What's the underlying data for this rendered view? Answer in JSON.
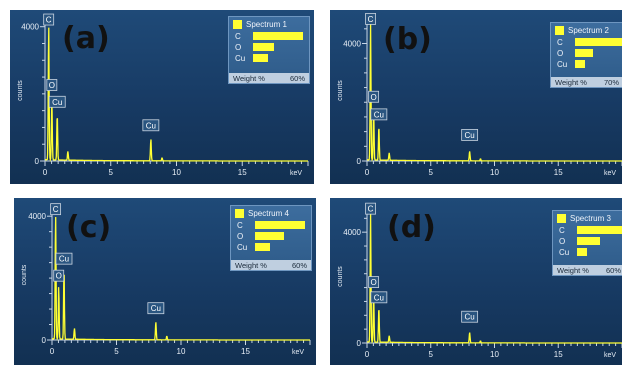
{
  "panels": [
    {
      "panel_label": "(a)",
      "spectrum": "Spectrum 1",
      "weight_label": "Weight %",
      "weight_value": "60%",
      "legend_bars": [
        {
          "element": "C",
          "fraction": 1.0
        },
        {
          "element": "O",
          "fraction": 0.42
        },
        {
          "element": "Cu",
          "fraction": 0.3
        }
      ]
    },
    {
      "panel_label": "(b)",
      "spectrum": "Spectrum 2",
      "weight_label": "Weight %",
      "weight_value": "70%",
      "legend_bars": [
        {
          "element": "C",
          "fraction": 1.0
        },
        {
          "element": "O",
          "fraction": 0.36
        },
        {
          "element": "Cu",
          "fraction": 0.2
        }
      ]
    },
    {
      "panel_label": "(c)",
      "spectrum": "Spectrum 4",
      "weight_label": "Weight %",
      "weight_value": "60%",
      "legend_bars": [
        {
          "element": "C",
          "fraction": 1.0
        },
        {
          "element": "O",
          "fraction": 0.58
        },
        {
          "element": "Cu",
          "fraction": 0.3
        }
      ]
    },
    {
      "panel_label": "(d)",
      "spectrum": "Spectrum 3",
      "weight_label": "Weight %",
      "weight_value": "60%",
      "legend_bars": [
        {
          "element": "C",
          "fraction": 1.0
        },
        {
          "element": "O",
          "fraction": 0.45
        },
        {
          "element": "Cu",
          "fraction": 0.2
        }
      ]
    }
  ],
  "chart_data": [
    {
      "type": "line",
      "xlabel": "keV",
      "ylabel": "counts",
      "xlim": [
        0,
        20
      ],
      "ylim": [
        0,
        4200
      ],
      "xticks": [
        0,
        5,
        10,
        15
      ],
      "yticks": [
        0,
        4000
      ],
      "line_color": "#ffff33",
      "peak_labels": [
        {
          "label": "C",
          "x": 0.28,
          "y": 4050
        },
        {
          "label": "O",
          "x": 0.52,
          "y": 2100
        },
        {
          "label": "Cu",
          "x": 0.93,
          "y": 1600
        },
        {
          "label": "Cu",
          "x": 8.05,
          "y": 900
        }
      ],
      "peaks": [
        {
          "x": 0.28,
          "y": 4000
        },
        {
          "x": 0.52,
          "y": 1850
        },
        {
          "x": 0.93,
          "y": 1350
        },
        {
          "x": 1.74,
          "y": 260
        },
        {
          "x": 8.05,
          "y": 650
        },
        {
          "x": 8.9,
          "y": 90
        }
      ]
    },
    {
      "type": "line",
      "xlabel": "keV",
      "ylabel": "counts",
      "xlim": [
        0,
        20
      ],
      "ylim": [
        0,
        4800
      ],
      "xticks": [
        0,
        5,
        10,
        15
      ],
      "yticks": [
        0,
        4000
      ],
      "line_color": "#ffff33",
      "peak_labels": [
        {
          "label": "C",
          "x": 0.28,
          "y": 4650
        },
        {
          "label": "O",
          "x": 0.52,
          "y": 2000
        },
        {
          "label": "Cu",
          "x": 0.93,
          "y": 1400
        },
        {
          "label": "Cu",
          "x": 8.05,
          "y": 700
        }
      ],
      "peaks": [
        {
          "x": 0.28,
          "y": 4700
        },
        {
          "x": 0.52,
          "y": 1750
        },
        {
          "x": 0.93,
          "y": 1150
        },
        {
          "x": 1.74,
          "y": 250
        },
        {
          "x": 8.05,
          "y": 330
        },
        {
          "x": 8.9,
          "y": 70
        }
      ]
    },
    {
      "type": "line",
      "xlabel": "keV",
      "ylabel": "counts",
      "xlim": [
        0,
        20
      ],
      "ylim": [
        0,
        4200
      ],
      "xticks": [
        0,
        5,
        10,
        15
      ],
      "yticks": [
        0,
        4000
      ],
      "line_color": "#ffff33",
      "peak_labels": [
        {
          "label": "C",
          "x": 0.28,
          "y": 4050
        },
        {
          "label": "O",
          "x": 0.52,
          "y": 1900
        },
        {
          "label": "Cu",
          "x": 0.93,
          "y": 2450
        },
        {
          "label": "Cu",
          "x": 8.05,
          "y": 850
        }
      ],
      "peaks": [
        {
          "x": 0.28,
          "y": 4000
        },
        {
          "x": 0.52,
          "y": 1700
        },
        {
          "x": 0.93,
          "y": 2250
        },
        {
          "x": 1.74,
          "y": 350
        },
        {
          "x": 8.05,
          "y": 580
        },
        {
          "x": 8.9,
          "y": 120
        }
      ]
    },
    {
      "type": "line",
      "xlabel": "keV",
      "ylabel": "counts",
      "xlim": [
        0,
        20
      ],
      "ylim": [
        0,
        4800
      ],
      "xticks": [
        0,
        5,
        10,
        15
      ],
      "yticks": [
        0,
        4000
      ],
      "line_color": "#ffff33",
      "peak_labels": [
        {
          "label": "C",
          "x": 0.28,
          "y": 4650
        },
        {
          "label": "O",
          "x": 0.52,
          "y": 2000
        },
        {
          "label": "Cu",
          "x": 0.93,
          "y": 1450
        },
        {
          "label": "Cu",
          "x": 8.05,
          "y": 750
        }
      ],
      "peaks": [
        {
          "x": 0.28,
          "y": 4700
        },
        {
          "x": 0.52,
          "y": 1750
        },
        {
          "x": 0.93,
          "y": 1250
        },
        {
          "x": 1.74,
          "y": 240
        },
        {
          "x": 8.05,
          "y": 380
        },
        {
          "x": 8.9,
          "y": 70
        }
      ]
    }
  ]
}
